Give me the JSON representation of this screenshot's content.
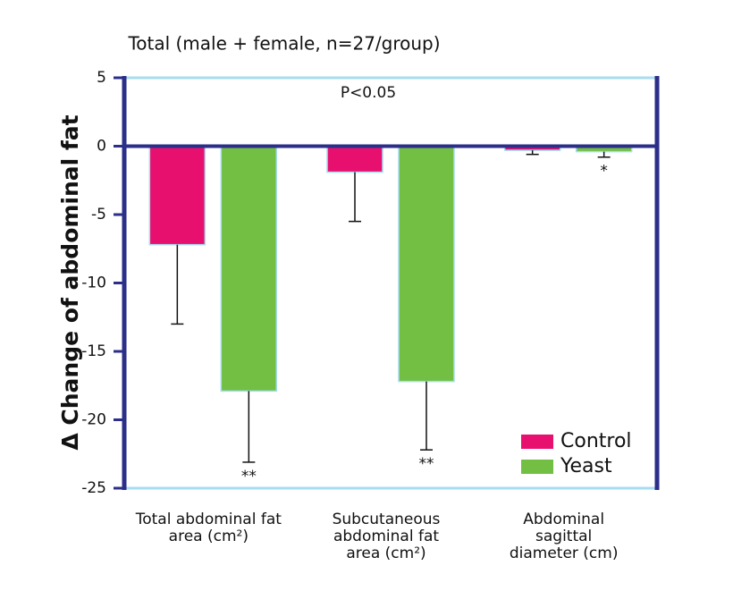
{
  "chart_data": {
    "type": "bar",
    "title": "Total (male + female, n=27/group)",
    "annotation": "P<0.05",
    "y_label": "Δ Change of abdominal fat",
    "categories": [
      "Total abdominal fat area (cm²)",
      "Subcutaneous abdominal fat area (cm²)",
      "Abdominal sagittal diameter (cm)"
    ],
    "series": [
      {
        "name": "Control",
        "color": "#e8106f",
        "values": [
          -7.2,
          -1.9,
          -0.3
        ],
        "errors": [
          5.8,
          3.6,
          0.3
        ]
      },
      {
        "name": "Yeast",
        "color": "#72bf44",
        "values": [
          -17.9,
          -17.2,
          -0.4
        ],
        "errors": [
          5.2,
          5.0,
          0.4
        ],
        "significance": [
          "**",
          "**",
          "*"
        ]
      }
    ],
    "ylim": [
      -25,
      5
    ],
    "yticks": [
      5,
      0,
      -5,
      -10,
      -15,
      -20,
      -25
    ],
    "legend": "lower right"
  }
}
